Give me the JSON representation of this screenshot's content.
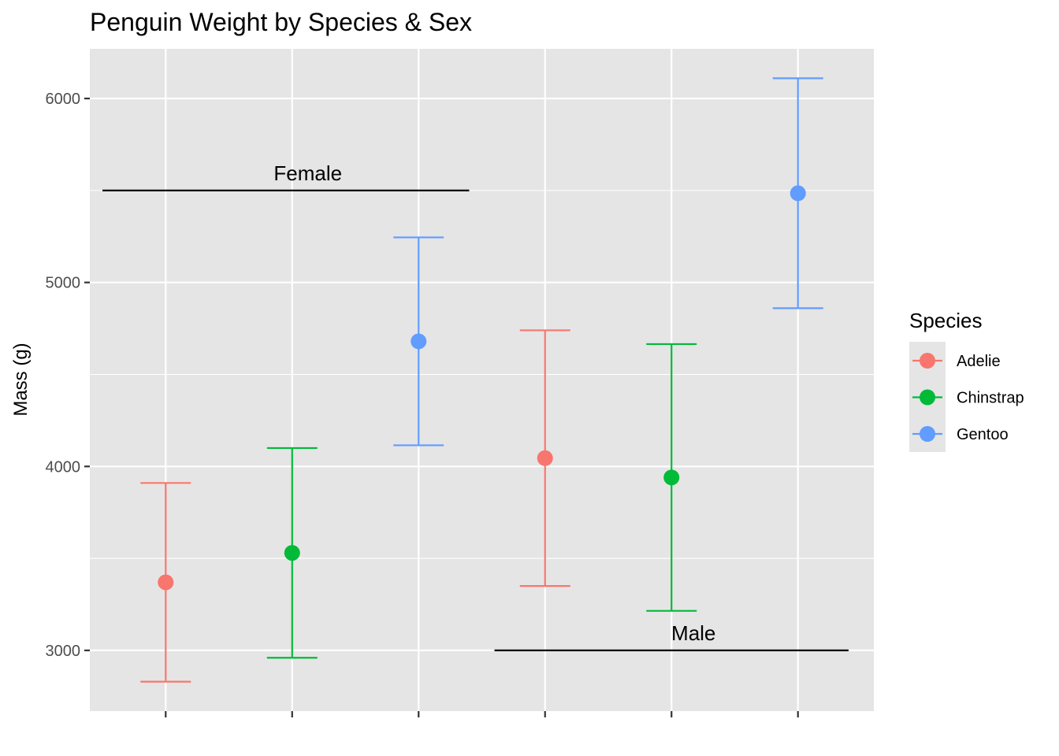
{
  "chart_data": {
    "type": "scatter",
    "title": "Penguin Weight by Species & Sex",
    "xlabel": "",
    "ylabel": "Mass (g)",
    "ylim": [
      2670,
      6270
    ],
    "yticks": [
      3000,
      4000,
      5000,
      6000
    ],
    "grid": true,
    "x_tick_labels_shown": false,
    "legend": {
      "title": "Species",
      "placement": "right",
      "entries": [
        {
          "name": "Adelie",
          "color": "#F8766D"
        },
        {
          "name": "Chinstrap",
          "color": "#00BA38"
        },
        {
          "name": "Gentoo",
          "color": "#619CFF"
        }
      ]
    },
    "points": [
      {
        "x": 1,
        "species": "Adelie",
        "mean": 3370,
        "lower": 2830,
        "upper": 3910
      },
      {
        "x": 2,
        "species": "Chinstrap",
        "mean": 3530,
        "lower": 2960,
        "upper": 4100
      },
      {
        "x": 3,
        "species": "Gentoo",
        "mean": 4680,
        "lower": 4115,
        "upper": 5245
      },
      {
        "x": 4,
        "species": "Adelie",
        "mean": 4045,
        "lower": 3350,
        "upper": 4740
      },
      {
        "x": 5,
        "species": "Chinstrap",
        "mean": 3940,
        "lower": 3215,
        "upper": 4665
      },
      {
        "x": 6,
        "species": "Gentoo",
        "mean": 5485,
        "lower": 4860,
        "upper": 6110
      }
    ],
    "annotations": [
      {
        "text": "Female",
        "x_start": 0.5,
        "x_end": 3.4,
        "y": 5500
      },
      {
        "text": "Male",
        "x_start": 3.6,
        "x_end": 6.4,
        "y": 3000
      }
    ]
  }
}
